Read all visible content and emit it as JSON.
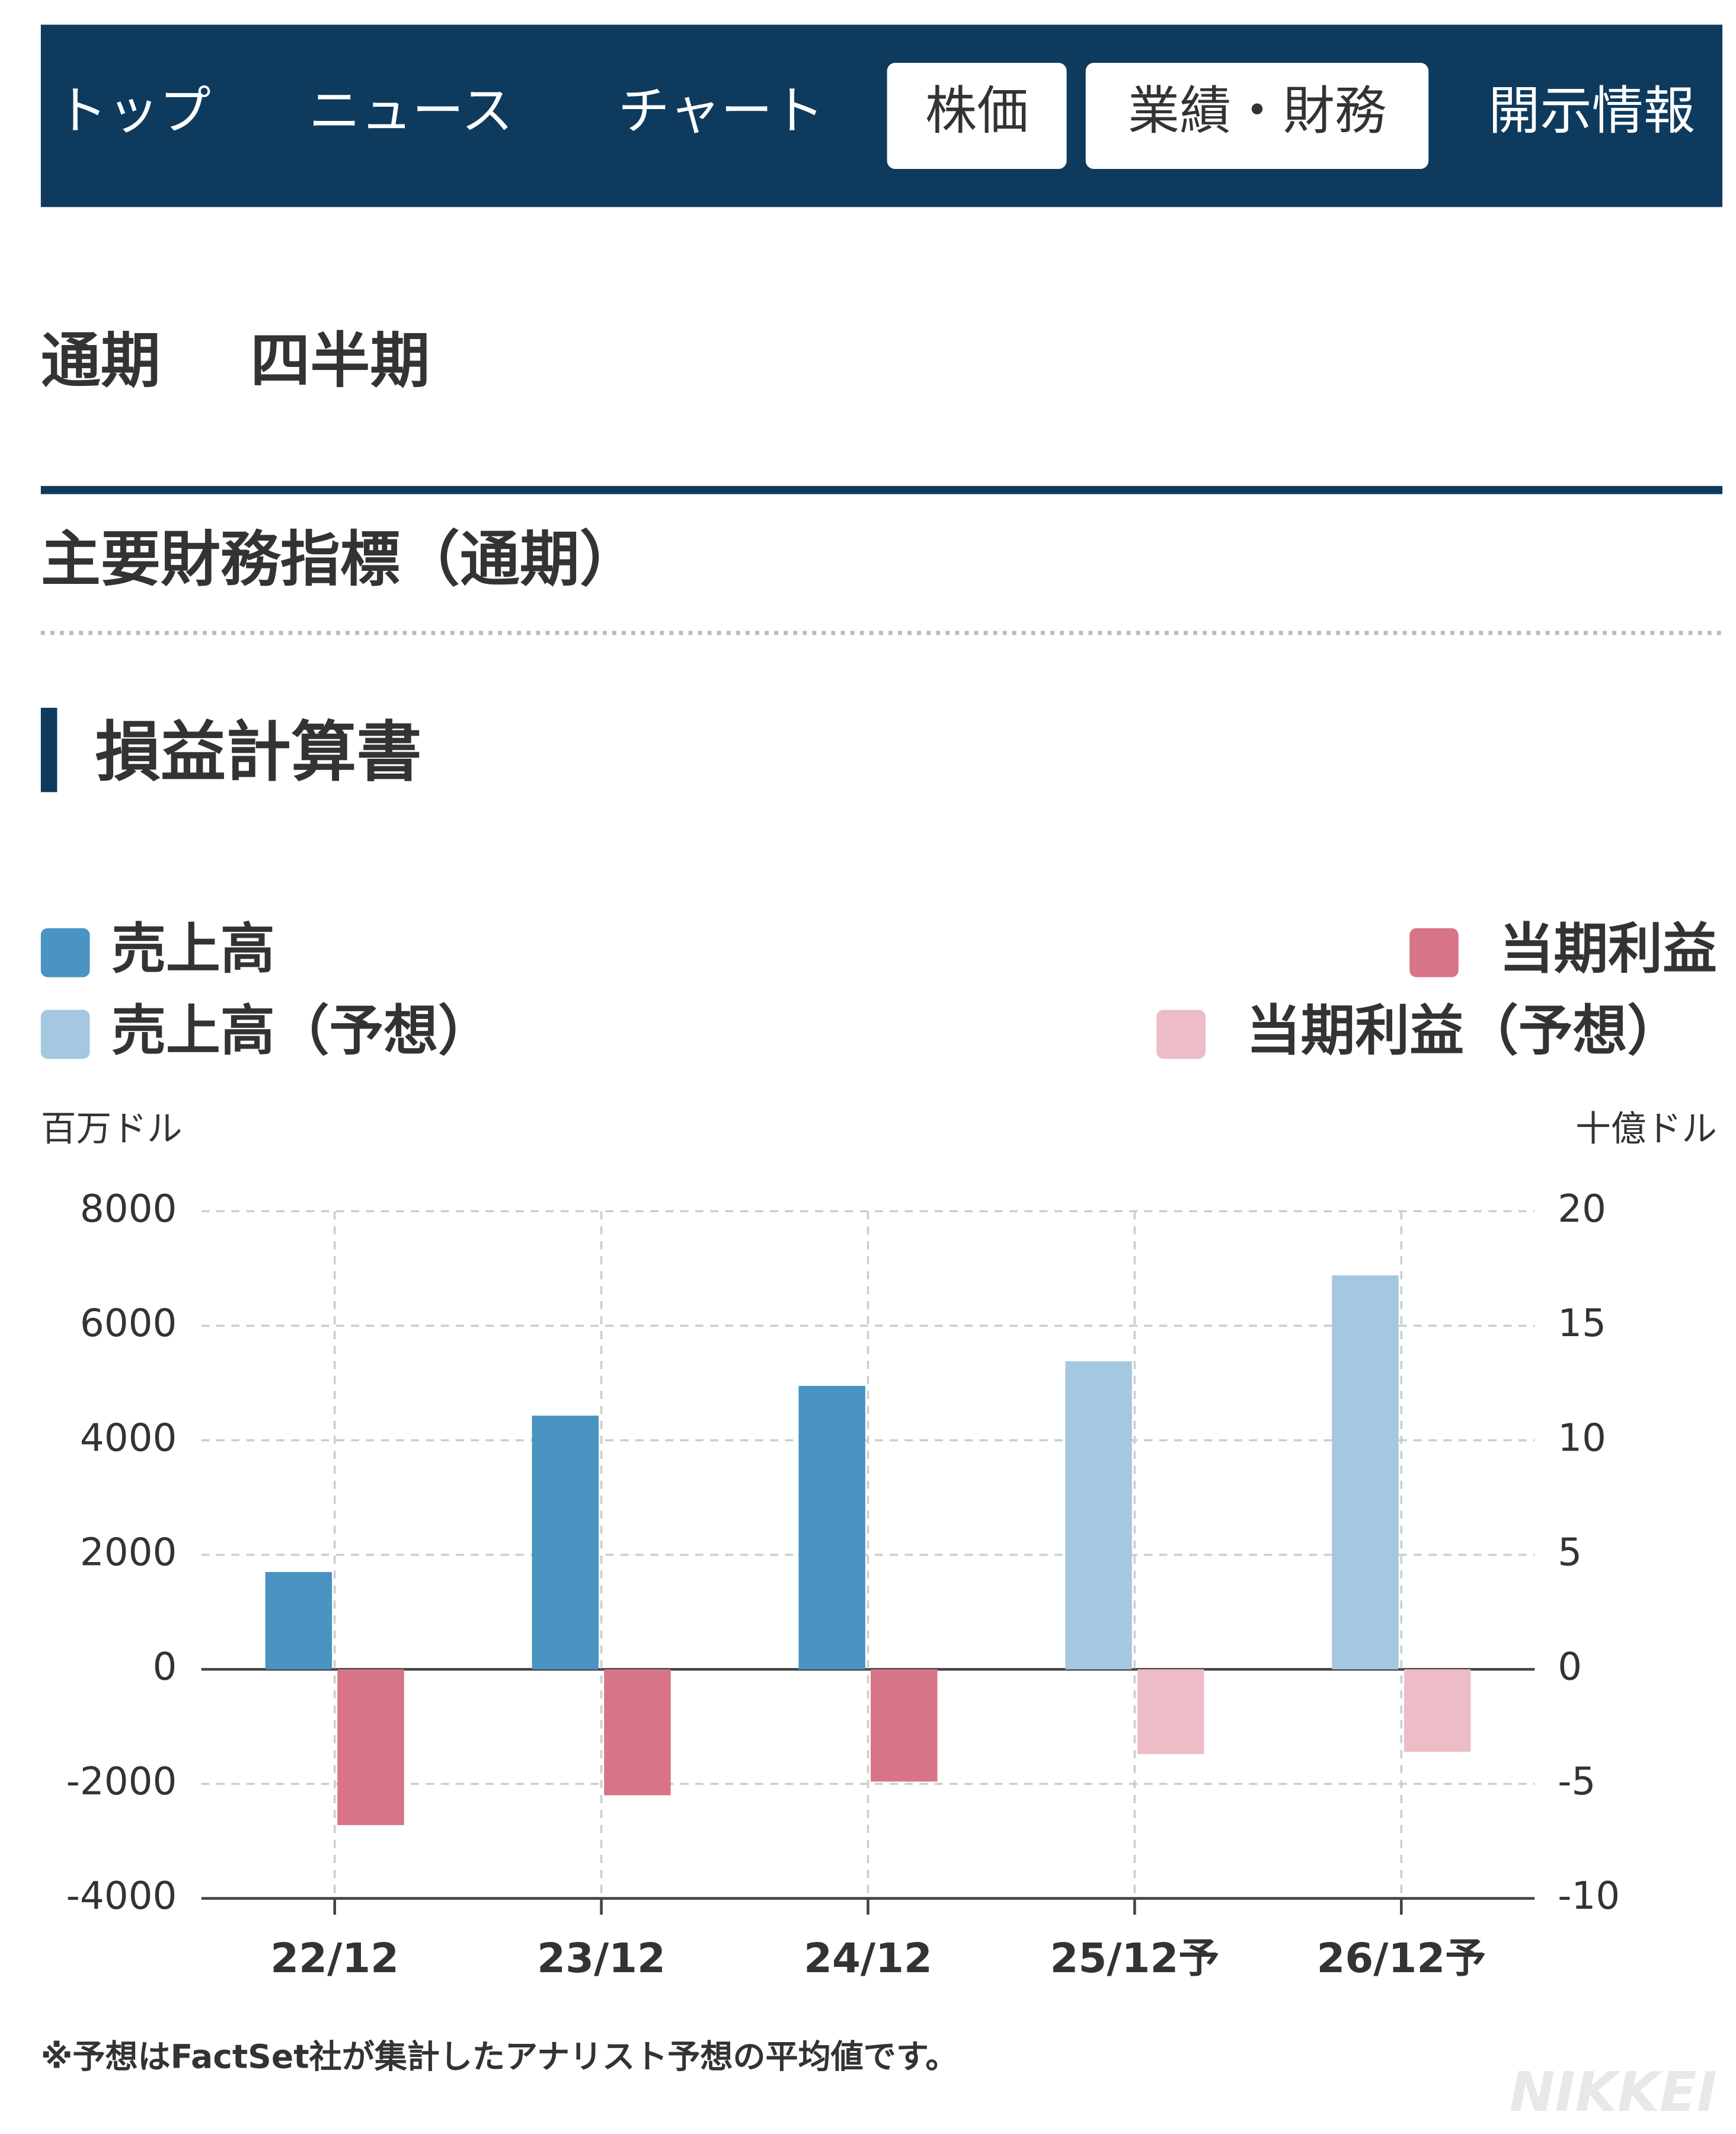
{
  "nav": {
    "tabs": [
      "トップ",
      "ニュース",
      "チャート",
      "株価",
      "業績・財務",
      "開示情報"
    ]
  },
  "period_tabs": [
    "通期",
    "四半期"
  ],
  "section_title": "主要財務指標（通期）",
  "subsection_title": "損益計算書",
  "chart_data": {
    "type": "bar",
    "categories": [
      "22/12",
      "23/12",
      "24/12",
      "25/12予",
      "26/12予"
    ],
    "y_label": "百万ドル",
    "y2_label": "十億ドル",
    "ylim": [
      -4000,
      8000
    ],
    "yticks": [
      -4000,
      -2000,
      0,
      2000,
      4000,
      6000,
      8000
    ],
    "y2lim": [
      -10,
      20
    ],
    "y2ticks": [
      -10,
      -5,
      0,
      5,
      10,
      15,
      20
    ],
    "grid": true,
    "series": [
      {
        "name": "売上高",
        "color": "#4a93c2",
        "values": [
          1700,
          4430,
          4950,
          null,
          null
        ]
      },
      {
        "name": "売上高（予想）",
        "color": "#a3c8df",
        "values": [
          null,
          null,
          null,
          5380,
          6880
        ]
      },
      {
        "name": "当期利益",
        "color": "#d77487",
        "axis": "y2",
        "values": [
          -6.8,
          -5.5,
          -4.9,
          null,
          null
        ]
      },
      {
        "name": "当期利益（予想）",
        "color": "#edbcc7",
        "axis": "y2",
        "values": [
          null,
          null,
          null,
          -3.7,
          -3.6
        ]
      }
    ]
  },
  "footnote": "※予想はFactSet社が集計したアナリスト予想の平均値です。",
  "watermark": "NIKKEI"
}
